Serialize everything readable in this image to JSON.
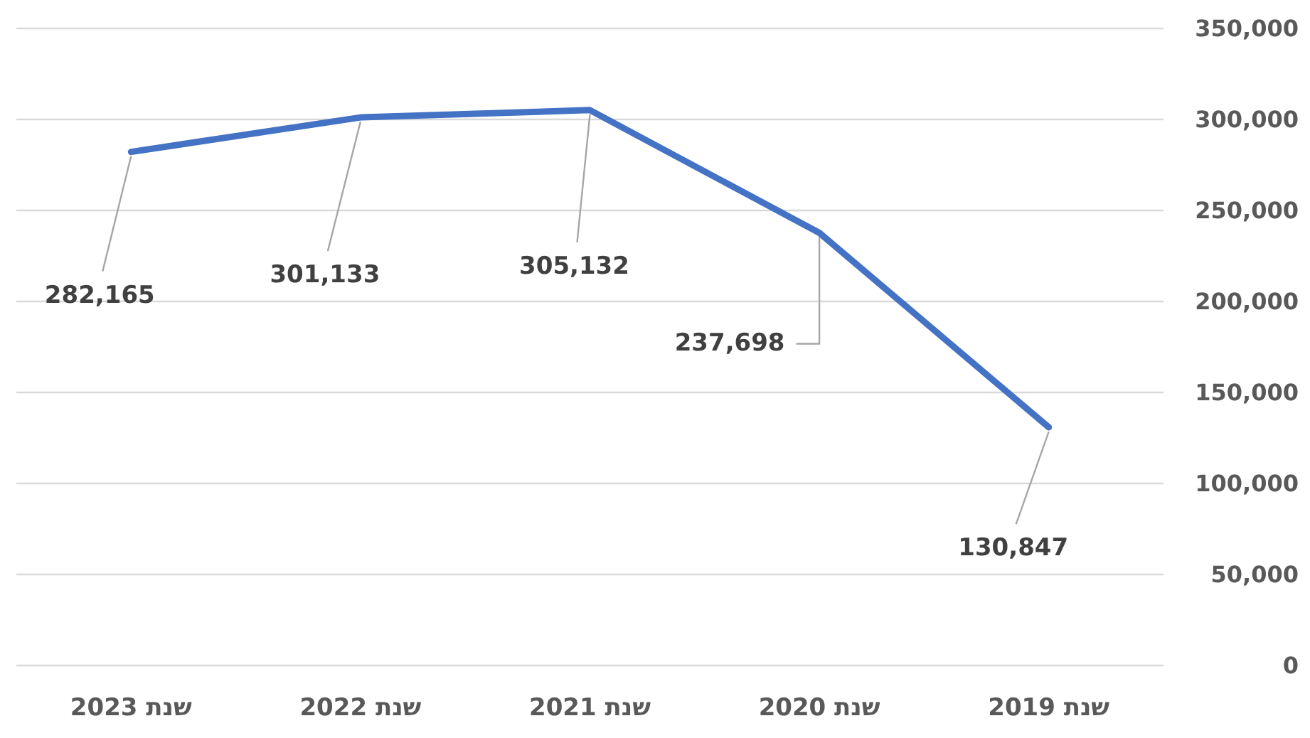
{
  "chart_data": {
    "type": "line",
    "categories": [
      "שנת 2023",
      "שנת 2022",
      "שנת 2021",
      "שנת 2020",
      "שנת 2019"
    ],
    "series": [
      {
        "color": "#4472c4",
        "values": [
          282165,
          301133,
          305132,
          237698,
          130847
        ],
        "value_labels": [
          "282,165",
          "301,133",
          "305,132",
          "237,698",
          "130,847"
        ]
      }
    ],
    "ylim": [
      0,
      350000
    ],
    "yticks": [
      {
        "value": 0,
        "label": "0"
      },
      {
        "value": 50000,
        "label": "50,000"
      },
      {
        "value": 100000,
        "label": "100,000"
      },
      {
        "value": 150000,
        "label": "150,000"
      },
      {
        "value": 200000,
        "label": "200,000"
      },
      {
        "value": 250000,
        "label": "250,000"
      },
      {
        "value": 300000,
        "label": "300,000"
      },
      {
        "value": 350000,
        "label": "350,000"
      }
    ],
    "grid": "y"
  }
}
